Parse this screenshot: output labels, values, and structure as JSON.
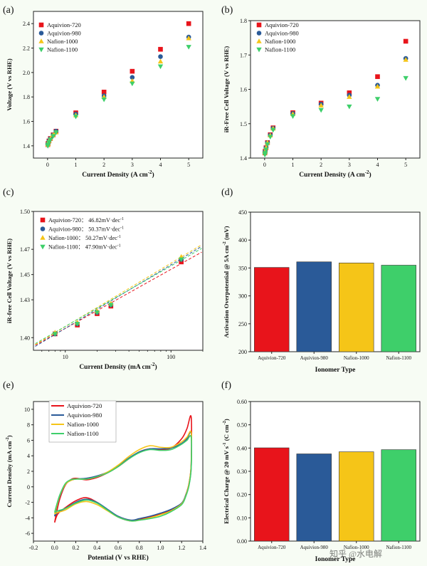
{
  "colors": {
    "aq720": "#e8141b",
    "aq980": "#2a5a98",
    "n1000": "#f5c518",
    "n1100": "#3ecf6a"
  },
  "chart_data": [
    {
      "panel_label": "(a)",
      "type": "scatter",
      "xlabel": "Current Density (A cm",
      "xlabel_sup": "-2",
      "xlabel_end": ")",
      "ylabel": "Voltage (V vs RHE)",
      "xlim": [
        -0.5,
        5.5
      ],
      "ylim": [
        1.3,
        2.5
      ],
      "xticks": [
        0,
        1,
        2,
        3,
        4,
        5
      ],
      "xtick_labels": [
        "0",
        "1",
        "2",
        "3",
        "4",
        "5"
      ],
      "yticks": [
        1.4,
        1.6,
        1.8,
        2.0,
        2.2,
        2.4
      ],
      "ytick_labels": [
        "1.4",
        "1.6",
        "1.8",
        "2.0",
        "2.2",
        "2.4"
      ],
      "legend_position": "top-left",
      "x": [
        0.01,
        0.02,
        0.05,
        0.1,
        0.2,
        0.3,
        1,
        2,
        3,
        4,
        5
      ],
      "series": [
        {
          "name": "Aquivion-720",
          "marker": "square",
          "values": [
            1.41,
            1.42,
            1.44,
            1.46,
            1.49,
            1.52,
            1.67,
            1.84,
            2.01,
            2.19,
            2.4
          ]
        },
        {
          "name": "Aquivion-980",
          "marker": "circle",
          "values": [
            1.41,
            1.42,
            1.44,
            1.46,
            1.49,
            1.52,
            1.66,
            1.81,
            1.96,
            2.13,
            2.29
          ]
        },
        {
          "name": "Nafion-1000",
          "marker": "triangle-up",
          "values": [
            1.41,
            1.42,
            1.44,
            1.46,
            1.49,
            1.51,
            1.65,
            1.8,
            1.93,
            2.09,
            2.28
          ]
        },
        {
          "name": "Nafion-1100",
          "marker": "triangle-down",
          "values": [
            1.4,
            1.41,
            1.43,
            1.45,
            1.48,
            1.51,
            1.64,
            1.78,
            1.91,
            2.05,
            2.21
          ]
        }
      ]
    },
    {
      "panel_label": "(b)",
      "type": "scatter",
      "xlabel": "Current Density (A cm",
      "xlabel_sup": "-2",
      "xlabel_end": ")",
      "ylabel": "iR-Free Cell Voltage (V vs RHE)",
      "xlim": [
        -0.5,
        5.5
      ],
      "ylim": [
        1.4,
        1.8
      ],
      "xticks": [
        0,
        1,
        2,
        3,
        4,
        5
      ],
      "xtick_labels": [
        "0",
        "1",
        "2",
        "3",
        "4",
        "5"
      ],
      "yticks": [
        1.4,
        1.5,
        1.6,
        1.7,
        1.8
      ],
      "ytick_labels": [
        "1.4",
        "1.5",
        "1.6",
        "1.7",
        "1.8"
      ],
      "legend_position": "top-left",
      "x": [
        0.01,
        0.02,
        0.05,
        0.1,
        0.2,
        0.3,
        1,
        2,
        3,
        4,
        5
      ],
      "series": [
        {
          "name": "Aquivion-720",
          "marker": "square",
          "values": [
            1.415,
            1.42,
            1.43,
            1.445,
            1.468,
            1.488,
            1.532,
            1.56,
            1.59,
            1.637,
            1.74
          ]
        },
        {
          "name": "Aquivion-980",
          "marker": "circle",
          "values": [
            1.415,
            1.42,
            1.43,
            1.445,
            1.467,
            1.487,
            1.53,
            1.557,
            1.583,
            1.612,
            1.69
          ]
        },
        {
          "name": "Nafion-1000",
          "marker": "triangle-up",
          "values": [
            1.415,
            1.42,
            1.43,
            1.445,
            1.466,
            1.486,
            1.528,
            1.553,
            1.578,
            1.608,
            1.686
          ]
        },
        {
          "name": "Nafion-1100",
          "marker": "triangle-down",
          "values": [
            1.41,
            1.415,
            1.425,
            1.44,
            1.462,
            1.482,
            1.522,
            1.54,
            1.55,
            1.572,
            1.633
          ]
        }
      ]
    },
    {
      "panel_label": "(c)",
      "type": "scatter",
      "xscale": "log",
      "xlabel": "Current Density (mA cm",
      "xlabel_sup": "-2",
      "xlabel_end": ")",
      "ylabel": "iR-free Cell Voltage (V vs RHE)",
      "xlim": [
        5,
        200
      ],
      "ylim": [
        1.39,
        1.5
      ],
      "xticks": [
        10,
        100
      ],
      "xtick_labels": [
        "10",
        "100"
      ],
      "yticks": [
        1.4,
        1.43,
        1.45,
        1.47,
        1.5
      ],
      "ytick_labels": [
        "1.40",
        "1.43",
        "1.45",
        "1.47",
        "1.50"
      ],
      "legend_position": "top-left",
      "x": [
        8,
        13,
        20,
        27,
        125
      ],
      "series": [
        {
          "name": "Aquivion-720",
          "slope_label": "46.82mV·dec",
          "marker": "square",
          "values": [
            1.403,
            1.41,
            1.419,
            1.425,
            1.46
          ],
          "fit": {
            "slope": 0.04682,
            "intercept": 1.3605
          }
        },
        {
          "name": "Aquivion-980",
          "slope_label": "50.37mV·dec",
          "marker": "circle",
          "values": [
            1.403,
            1.411,
            1.42,
            1.426,
            1.462
          ],
          "fit": {
            "slope": 0.05037,
            "intercept": 1.357
          }
        },
        {
          "name": "Nafion-1000",
          "slope_label": "50.27mV·dec",
          "marker": "triangle-up",
          "values": [
            1.404,
            1.412,
            1.421,
            1.427,
            1.464
          ],
          "fit": {
            "slope": 0.05027,
            "intercept": 1.3585
          }
        },
        {
          "name": "Nafion-1100",
          "slope_label": "47.90mV·dec",
          "marker": "triangle-down",
          "values": [
            1.403,
            1.411,
            1.42,
            1.426,
            1.462
          ],
          "fit": {
            "slope": 0.0479,
            "intercept": 1.361
          }
        }
      ]
    },
    {
      "panel_label": "(d)",
      "type": "bar",
      "xlabel": "Ionomer Type",
      "ylabel": "Activation Overpotential @ 5A cm",
      "ylabel_sup": "-2",
      "ylabel_end": " (mV)",
      "ylim": [
        200,
        450
      ],
      "yticks": [
        200,
        250,
        300,
        350,
        400,
        450
      ],
      "ytick_labels": [
        "200",
        "250",
        "300",
        "350",
        "400",
        "450"
      ],
      "categories": [
        "Aquivion-720",
        "Aquivion-980",
        "Nafion-1000",
        "Nafion-1100"
      ],
      "values": [
        351,
        361,
        359,
        355
      ]
    },
    {
      "panel_label": "(e)",
      "type": "line",
      "xlabel": "Potential (V vs RHE)",
      "ylabel": "Current Density (mA cm",
      "ylabel_sup": "-2",
      "ylabel_end": ")",
      "xlim": [
        -0.2,
        1.4
      ],
      "ylim": [
        -7,
        11
      ],
      "xticks": [
        -0.2,
        0.0,
        0.2,
        0.4,
        0.6,
        0.8,
        1.0,
        1.2,
        1.4
      ],
      "xtick_labels": [
        "-0.2",
        "0.0",
        "0.2",
        "0.4",
        "0.6",
        "0.8",
        "1.0",
        "1.2",
        "1.4"
      ],
      "yticks": [
        -6,
        -4,
        -2,
        0,
        2,
        4,
        6,
        8,
        10
      ],
      "ytick_labels": [
        "-6",
        "-4",
        "-2",
        "0",
        "2",
        "4",
        "6",
        "8",
        "10"
      ],
      "legend_position": "top-left",
      "series": [
        {
          "name": "Aquivion-720",
          "anodic": [
            [
              0.0,
              -4.6
            ],
            [
              0.02,
              -3.2
            ],
            [
              0.05,
              -1.5
            ],
            [
              0.1,
              0.2
            ],
            [
              0.15,
              0.9
            ],
            [
              0.2,
              1.1
            ],
            [
              0.3,
              0.9
            ],
            [
              0.4,
              1.2
            ],
            [
              0.5,
              1.8
            ],
            [
              0.6,
              2.6
            ],
            [
              0.7,
              3.6
            ],
            [
              0.8,
              4.5
            ],
            [
              0.9,
              4.9
            ],
            [
              1.0,
              4.8
            ],
            [
              1.1,
              5.0
            ],
            [
              1.2,
              6.2
            ],
            [
              1.25,
              7.5
            ],
            [
              1.29,
              9.0
            ]
          ],
          "cathodic": [
            [
              1.29,
              9.0
            ],
            [
              1.29,
              3.0
            ],
            [
              1.27,
              0.5
            ],
            [
              1.24,
              -1.0
            ],
            [
              1.2,
              -2.2
            ],
            [
              1.1,
              -3.0
            ],
            [
              1.0,
              -3.5
            ],
            [
              0.9,
              -3.9
            ],
            [
              0.8,
              -4.2
            ],
            [
              0.72,
              -4.4
            ],
            [
              0.6,
              -3.9
            ],
            [
              0.5,
              -3.0
            ],
            [
              0.4,
              -2.0
            ],
            [
              0.3,
              -1.4
            ],
            [
              0.2,
              -1.8
            ],
            [
              0.1,
              -2.7
            ],
            [
              0.03,
              -3.5
            ],
            [
              0.0,
              -4.6
            ]
          ]
        },
        {
          "name": "Aquivion-980",
          "anodic": [
            [
              0.0,
              -3.8
            ],
            [
              0.02,
              -2.6
            ],
            [
              0.05,
              -1.2
            ],
            [
              0.1,
              0.3
            ],
            [
              0.15,
              0.8
            ],
            [
              0.2,
              1.0
            ],
            [
              0.3,
              1.1
            ],
            [
              0.4,
              1.4
            ],
            [
              0.5,
              1.9
            ],
            [
              0.6,
              2.7
            ],
            [
              0.7,
              3.7
            ],
            [
              0.8,
              4.5
            ],
            [
              0.9,
              4.9
            ],
            [
              1.0,
              4.9
            ],
            [
              1.1,
              5.0
            ],
            [
              1.2,
              5.6
            ],
            [
              1.25,
              6.2
            ],
            [
              1.29,
              6.9
            ]
          ],
          "cathodic": [
            [
              1.29,
              6.9
            ],
            [
              1.29,
              2.5
            ],
            [
              1.27,
              0.3
            ],
            [
              1.24,
              -1.0
            ],
            [
              1.2,
              -2.1
            ],
            [
              1.1,
              -2.9
            ],
            [
              1.0,
              -3.4
            ],
            [
              0.9,
              -3.8
            ],
            [
              0.8,
              -4.1
            ],
            [
              0.72,
              -4.3
            ],
            [
              0.6,
              -3.8
            ],
            [
              0.5,
              -2.9
            ],
            [
              0.4,
              -2.0
            ],
            [
              0.3,
              -1.6
            ],
            [
              0.2,
              -2.0
            ],
            [
              0.1,
              -2.8
            ],
            [
              0.03,
              -3.3
            ],
            [
              0.0,
              -3.8
            ]
          ]
        },
        {
          "name": "Nafion-1000",
          "anodic": [
            [
              0.0,
              -3.5
            ],
            [
              0.02,
              -2.5
            ],
            [
              0.05,
              -1.1
            ],
            [
              0.1,
              0.3
            ],
            [
              0.15,
              0.8
            ],
            [
              0.2,
              1.0
            ],
            [
              0.3,
              1.0
            ],
            [
              0.4,
              1.3
            ],
            [
              0.5,
              1.9
            ],
            [
              0.6,
              2.8
            ],
            [
              0.7,
              3.9
            ],
            [
              0.8,
              4.8
            ],
            [
              0.9,
              5.3
            ],
            [
              1.0,
              5.1
            ],
            [
              1.1,
              5.1
            ],
            [
              1.2,
              5.8
            ],
            [
              1.25,
              6.4
            ],
            [
              1.29,
              7.0
            ]
          ],
          "cathodic": [
            [
              1.29,
              7.0
            ],
            [
              1.29,
              2.8
            ],
            [
              1.27,
              0.4
            ],
            [
              1.24,
              -1.1
            ],
            [
              1.2,
              -2.2
            ],
            [
              1.1,
              -3.1
            ],
            [
              1.0,
              -3.6
            ],
            [
              0.9,
              -4.0
            ],
            [
              0.8,
              -4.3
            ],
            [
              0.72,
              -4.4
            ],
            [
              0.6,
              -3.9
            ],
            [
              0.5,
              -3.1
            ],
            [
              0.4,
              -2.3
            ],
            [
              0.3,
              -1.9
            ],
            [
              0.2,
              -2.2
            ],
            [
              0.1,
              -3.0
            ],
            [
              0.03,
              -3.3
            ],
            [
              0.0,
              -3.5
            ]
          ]
        },
        {
          "name": "Nafion-1100",
          "anodic": [
            [
              0.0,
              -3.3
            ],
            [
              0.02,
              -2.3
            ],
            [
              0.05,
              -1.0
            ],
            [
              0.1,
              0.4
            ],
            [
              0.15,
              0.9
            ],
            [
              0.2,
              1.0
            ],
            [
              0.3,
              1.0
            ],
            [
              0.4,
              1.3
            ],
            [
              0.5,
              1.8
            ],
            [
              0.6,
              2.6
            ],
            [
              0.7,
              3.6
            ],
            [
              0.8,
              4.4
            ],
            [
              0.9,
              4.8
            ],
            [
              1.0,
              4.7
            ],
            [
              1.1,
              4.8
            ],
            [
              1.2,
              5.5
            ],
            [
              1.25,
              6.0
            ],
            [
              1.29,
              6.4
            ]
          ],
          "cathodic": [
            [
              1.29,
              6.4
            ],
            [
              1.29,
              2.4
            ],
            [
              1.27,
              0.2
            ],
            [
              1.24,
              -1.2
            ],
            [
              1.2,
              -2.3
            ],
            [
              1.1,
              -3.2
            ],
            [
              1.0,
              -3.8
            ],
            [
              0.9,
              -4.1
            ],
            [
              0.8,
              -4.3
            ],
            [
              0.72,
              -4.4
            ],
            [
              0.6,
              -3.9
            ],
            [
              0.5,
              -3.0
            ],
            [
              0.4,
              -2.1
            ],
            [
              0.3,
              -1.7
            ],
            [
              0.2,
              -2.1
            ],
            [
              0.1,
              -2.8
            ],
            [
              0.03,
              -3.1
            ],
            [
              0.0,
              -3.3
            ]
          ]
        }
      ]
    },
    {
      "panel_label": "(f)",
      "type": "bar",
      "xlabel": "Ionomer Type",
      "ylabel": "Electrical Charge @ 20 mV s",
      "ylabel_sup": "-1",
      "ylabel_mid": " (C cm",
      "ylabel_sup2": "-2",
      "ylabel_end": ")",
      "ylim": [
        0.0,
        0.6
      ],
      "yticks": [
        0.0,
        0.1,
        0.2,
        0.3,
        0.4,
        0.5,
        0.6
      ],
      "ytick_labels": [
        "0.00",
        "0.10",
        "0.20",
        "0.30",
        "0.40",
        "0.50",
        "0.60"
      ],
      "categories": [
        "Aquivion-720",
        "Aquivion-980",
        "Nafion-1000",
        "Nafion-1100"
      ],
      "values": [
        0.401,
        0.375,
        0.384,
        0.393
      ]
    }
  ],
  "watermark": "知乎 @水电解"
}
